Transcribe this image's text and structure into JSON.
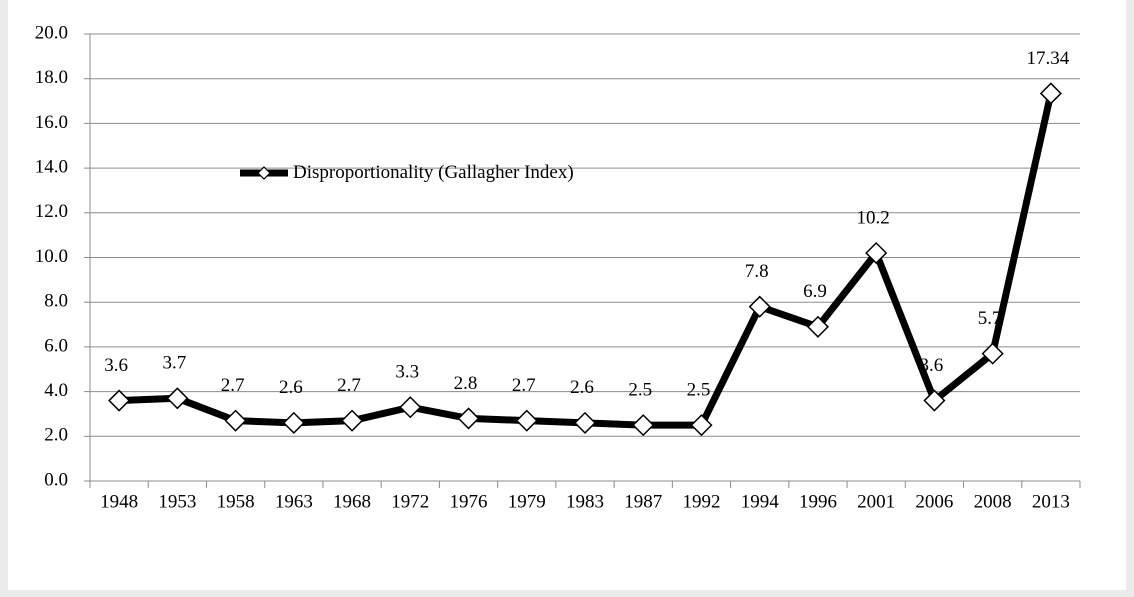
{
  "chart_data": {
    "type": "line",
    "categories": [
      "1948",
      "1953",
      "1958",
      "1963",
      "1968",
      "1972",
      "1976",
      "1979",
      "1983",
      "1987",
      "1992",
      "1994",
      "1996",
      "2001",
      "2006",
      "2008",
      "2013"
    ],
    "series": [
      {
        "name": "Disproportionality (Gallagher Index)",
        "color": "#000000",
        "values": [
          3.6,
          3.7,
          2.7,
          2.6,
          2.7,
          3.3,
          2.8,
          2.7,
          2.6,
          2.5,
          2.5,
          7.8,
          6.9,
          10.2,
          3.6,
          5.7,
          17.34
        ]
      }
    ],
    "ylim": [
      0,
      20
    ],
    "yticks": [
      {
        "value": 0,
        "label": "0.0"
      },
      {
        "value": 2,
        "label": "2.0"
      },
      {
        "value": 4,
        "label": "4.0"
      },
      {
        "value": 6,
        "label": "6.0"
      },
      {
        "value": 8,
        "label": "8.0"
      },
      {
        "value": 10,
        "label": "10.0"
      },
      {
        "value": 12,
        "label": "12.0"
      },
      {
        "value": 14,
        "label": "14.0"
      },
      {
        "value": 16,
        "label": "16.0"
      },
      {
        "value": 18,
        "label": "18.0"
      },
      {
        "value": 20,
        "label": "20.0"
      }
    ],
    "grid": true,
    "legend": "upper-left"
  }
}
